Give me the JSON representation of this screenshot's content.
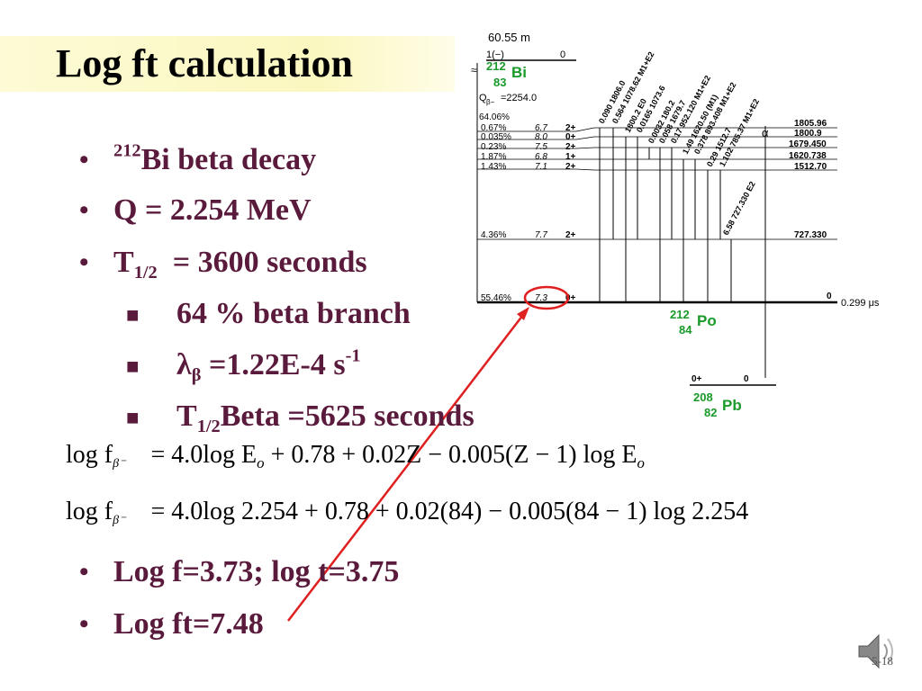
{
  "title": "Log ft calculation",
  "bullets": [
    {
      "sup": "212",
      "text": "Bi beta decay"
    },
    {
      "text": "Q = 2.254 MeV"
    },
    {
      "main": "T",
      "sub": "1/2",
      "text": "  = 3600 seconds"
    }
  ],
  "sub_bullets": [
    {
      "text": "64 % beta branch"
    },
    {
      "lambda": "λ",
      "beta_sub": "β",
      "text": " =1.22E-4 s",
      "sup": "-1"
    },
    {
      "main": "T",
      "sub": "1/2",
      "text": "Beta =5625 seconds"
    }
  ],
  "equations": {
    "line1": {
      "lhs": "log f",
      "lhs_sub": "β⁻",
      "rhs": "= 4.0log E",
      "rhs_sub1": "o",
      "rhs_rest": " + 0.78 + 0.02Z − 0.005(Z − 1) log E",
      "rhs_sub2": "o"
    },
    "line2": {
      "lhs": "log f",
      "lhs_sub": "β⁻",
      "rhs": "= 4.0log 2.254 + 0.78 + 0.02(84) − 0.005(84 − 1) log 2.254"
    }
  },
  "results": [
    {
      "text": "Log f=3.73; log t=3.75"
    },
    {
      "text": "Log ft=7.48"
    }
  ],
  "diagram": {
    "parent_halflife": "60.55 m",
    "parent_spin": "1(−)",
    "parent_level": "0",
    "parent_mass": "212",
    "parent_z": "83",
    "parent_symbol": "Bi",
    "q_label": "Q",
    "q_sub": "β−",
    "q_value": "=2254.0",
    "total_branch": "64.06%",
    "levels": [
      {
        "branch": "0.67%",
        "logft": "6.7",
        "spin": "2+",
        "energy": "1805.96"
      },
      {
        "branch": "0.035%",
        "logft": "8.0",
        "spin": "0+",
        "energy": "1800.9"
      },
      {
        "branch": "0.23%",
        "logft": "7.5",
        "spin": "2+",
        "energy": "1679.450"
      },
      {
        "branch": "1.87%",
        "logft": "6.8",
        "spin": "1+",
        "energy": "1620.738"
      },
      {
        "branch": "1.43%",
        "logft": "7.1",
        "spin": "2+",
        "energy": "1512.70"
      },
      {
        "branch": "4.36%",
        "logft": "7.7",
        "spin": "2+",
        "energy": "727.330"
      },
      {
        "branch": "55.46%",
        "logft": "7.3",
        "spin": "0+",
        "energy": "0"
      }
    ],
    "gammas": [
      "0.090 1806.0",
      "0.564 1078.62 M1+E2",
      "1800.2 E0",
      "0.0165 1073.6",
      "0.0032 180.2",
      "0.058 1679.7",
      "0.17 952.120 M1+E2",
      "1.49 1620.50 (M1)",
      "0.378 893.408 M1+E2",
      "0.29 1512.7",
      "1.102 785.37 M1+E2",
      "6.58 727.330 E2"
    ],
    "alpha_label": "α",
    "po_halflife": "0.299 μs",
    "daughter_mass": "212",
    "daughter_z": "84",
    "daughter_symbol": "Po",
    "pb_spin": "0+",
    "pb_level": "0",
    "pb_mass": "208",
    "pb_z": "82",
    "pb_symbol": "Pb",
    "element_color": "#1a9a2a"
  },
  "slide_number": "5-18",
  "colors": {
    "bullet_text": "#5a1a3c",
    "arrow": "#e02020",
    "title_bg": "#fbf7c0"
  }
}
